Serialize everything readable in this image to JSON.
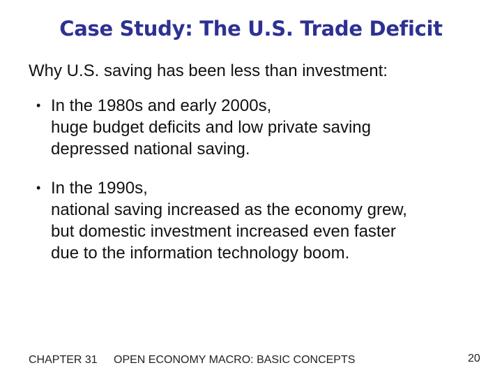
{
  "slide": {
    "title": "Case Study:  The U.S. Trade Deficit",
    "intro": "Why U.S. saving has been less than investment:",
    "bullets": [
      {
        "lines": [
          "In the 1980s and early 2000s,",
          "huge budget deficits and low private saving",
          "depressed national saving."
        ]
      },
      {
        "lines": [
          "In the 1990s,",
          "national saving increased as the economy grew,",
          "but domestic investment increased even faster",
          "due to the information technology boom."
        ]
      }
    ],
    "bullet_symbol": "•"
  },
  "footer": {
    "chapter": "CHAPTER 31",
    "course": "OPEN ECONOMY MACRO:  BASIC CONCEPTS",
    "page": "20"
  },
  "colors": {
    "title": "#2e3192",
    "text": "#111111"
  }
}
